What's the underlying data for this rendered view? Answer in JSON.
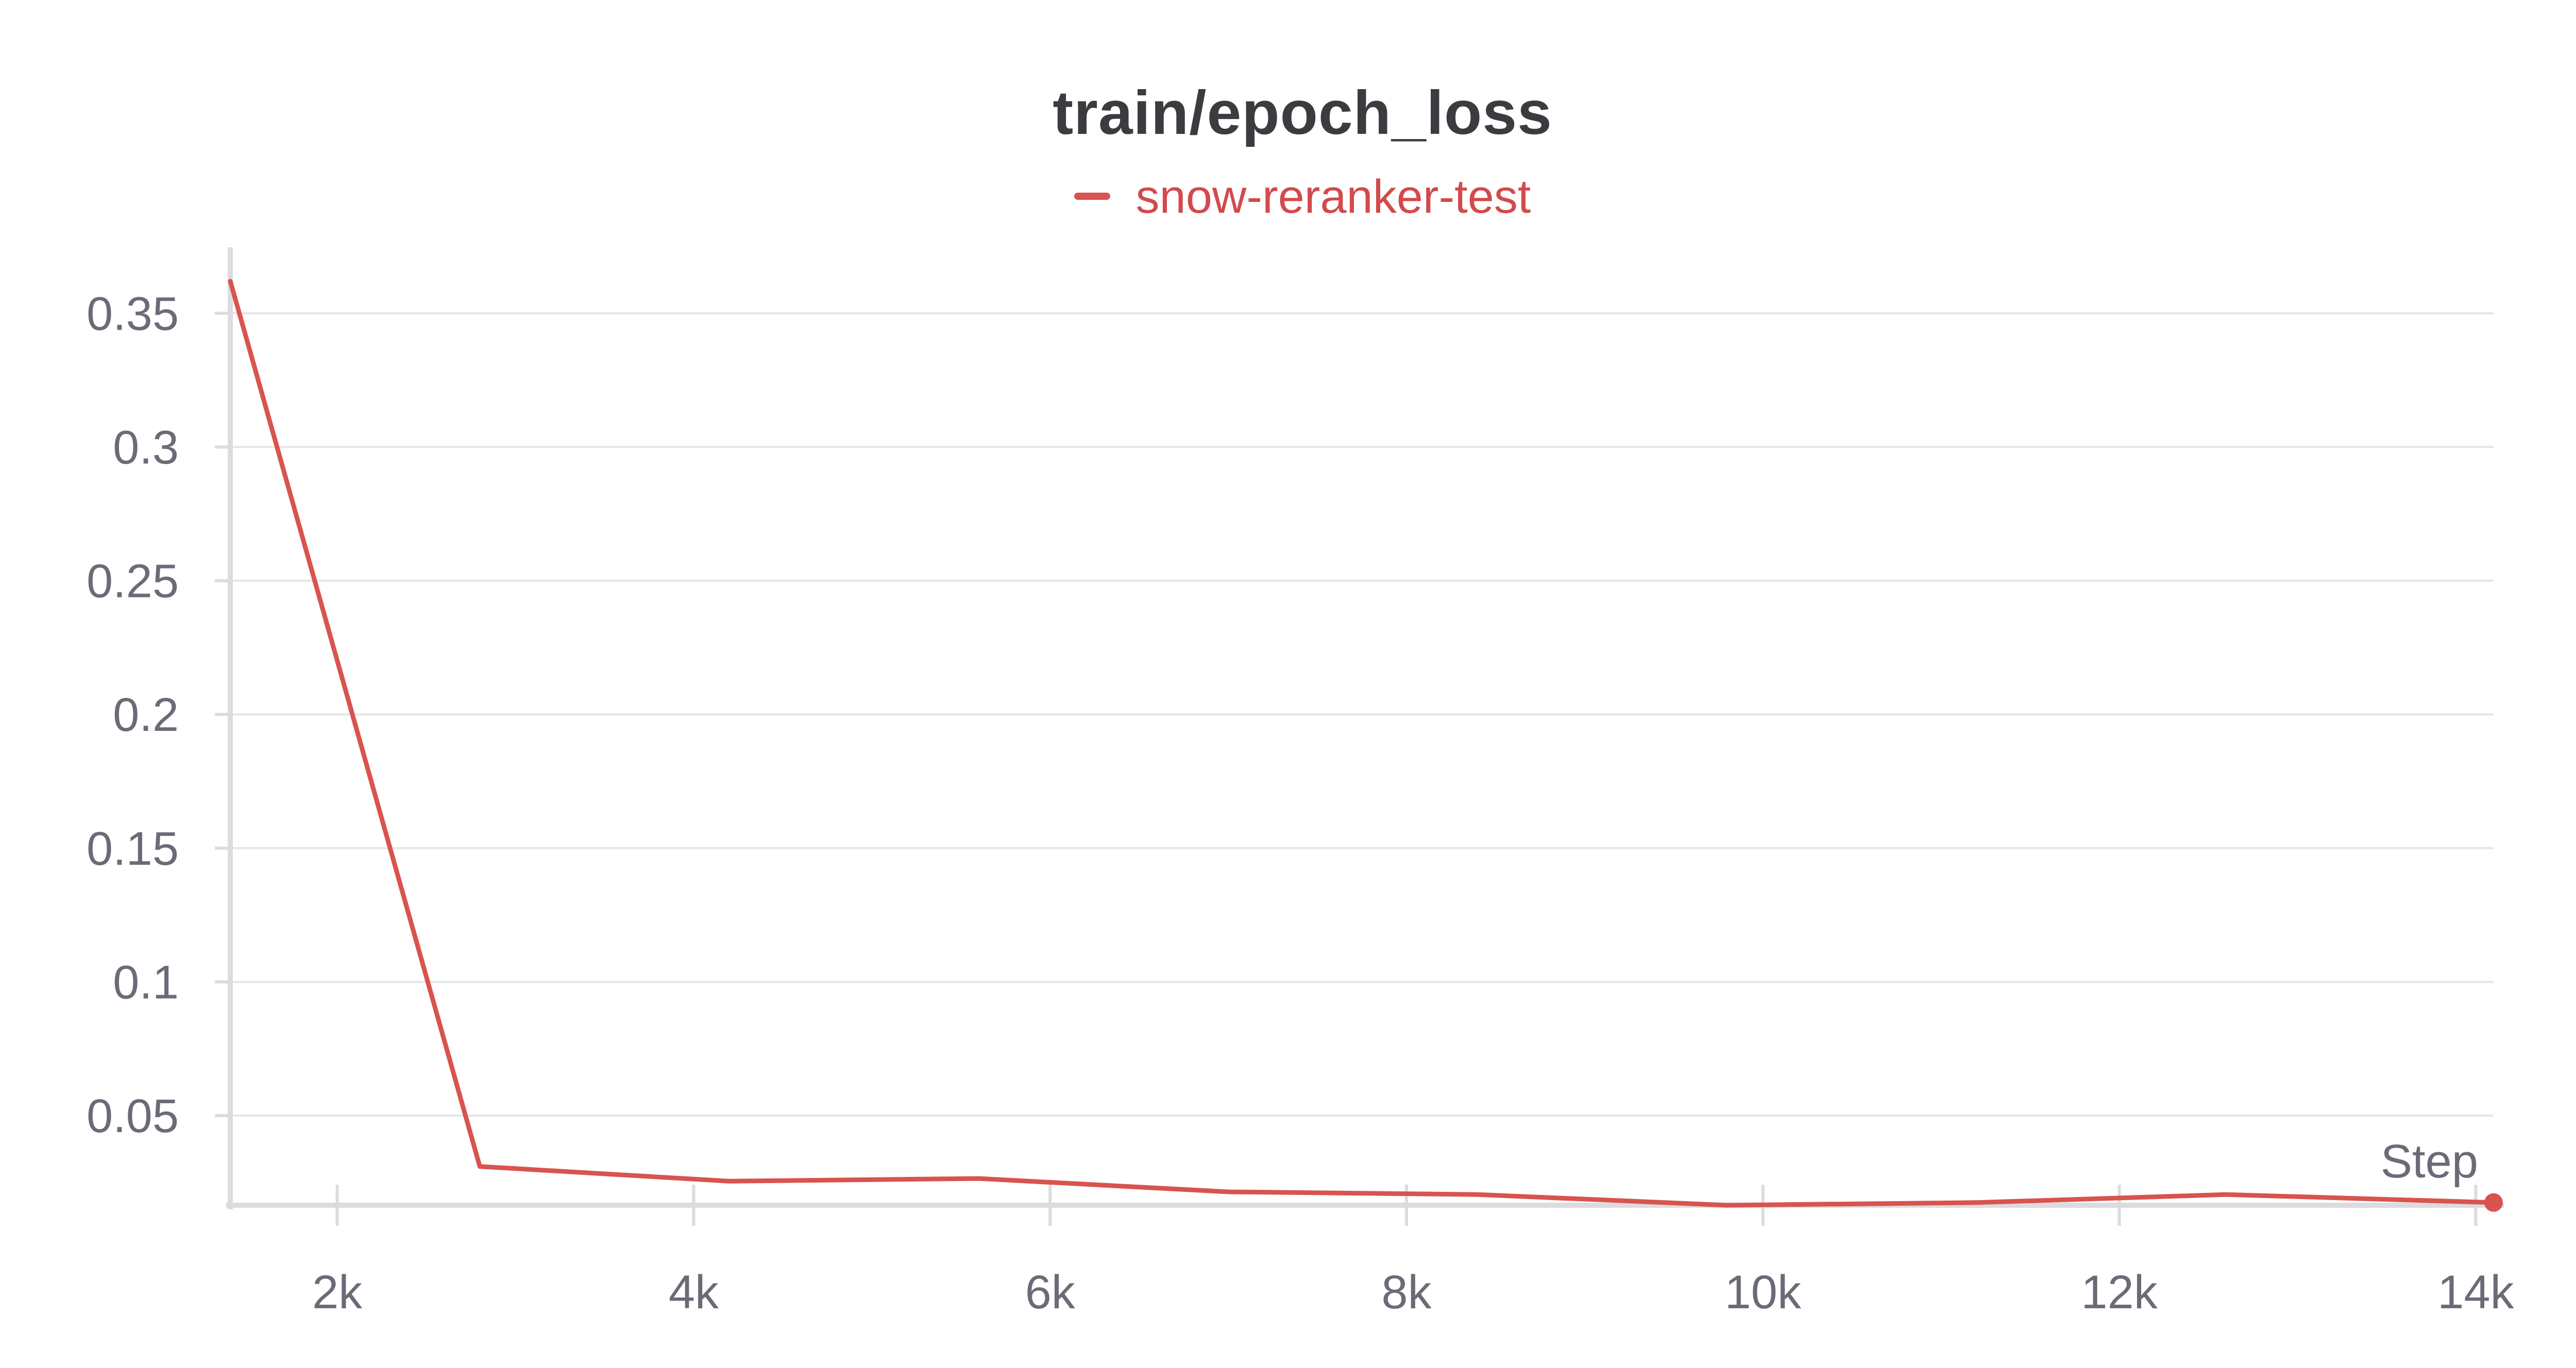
{
  "chart_data": {
    "type": "line",
    "title": "train/epoch_loss",
    "xlabel": "Step",
    "ylabel": "",
    "xlim": [
      1400,
      14100
    ],
    "ylim": [
      0.0165,
      0.367
    ],
    "x_ticks": [
      2000,
      4000,
      6000,
      8000,
      10000,
      12000,
      14000
    ],
    "x_tick_labels": [
      "2k",
      "4k",
      "6k",
      "8k",
      "10k",
      "12k",
      "14k"
    ],
    "y_ticks": [
      0.05,
      0.1,
      0.15,
      0.2,
      0.25,
      0.3,
      0.35
    ],
    "y_tick_labels": [
      "0.05",
      "0.1",
      "0.15",
      "0.2",
      "0.25",
      "0.3",
      "0.35"
    ],
    "grid": "horizontal",
    "legend_position": "top-center",
    "series": [
      {
        "name": "snow-reranker-test",
        "color": "#d9534f",
        "x": [
          1400,
          2800,
          4200,
          5600,
          7000,
          8400,
          9800,
          11200,
          12600,
          14100
        ],
        "y": [
          0.362,
          0.031,
          0.0255,
          0.0265,
          0.0215,
          0.0205,
          0.0165,
          0.0175,
          0.0205,
          0.0175
        ]
      }
    ]
  }
}
